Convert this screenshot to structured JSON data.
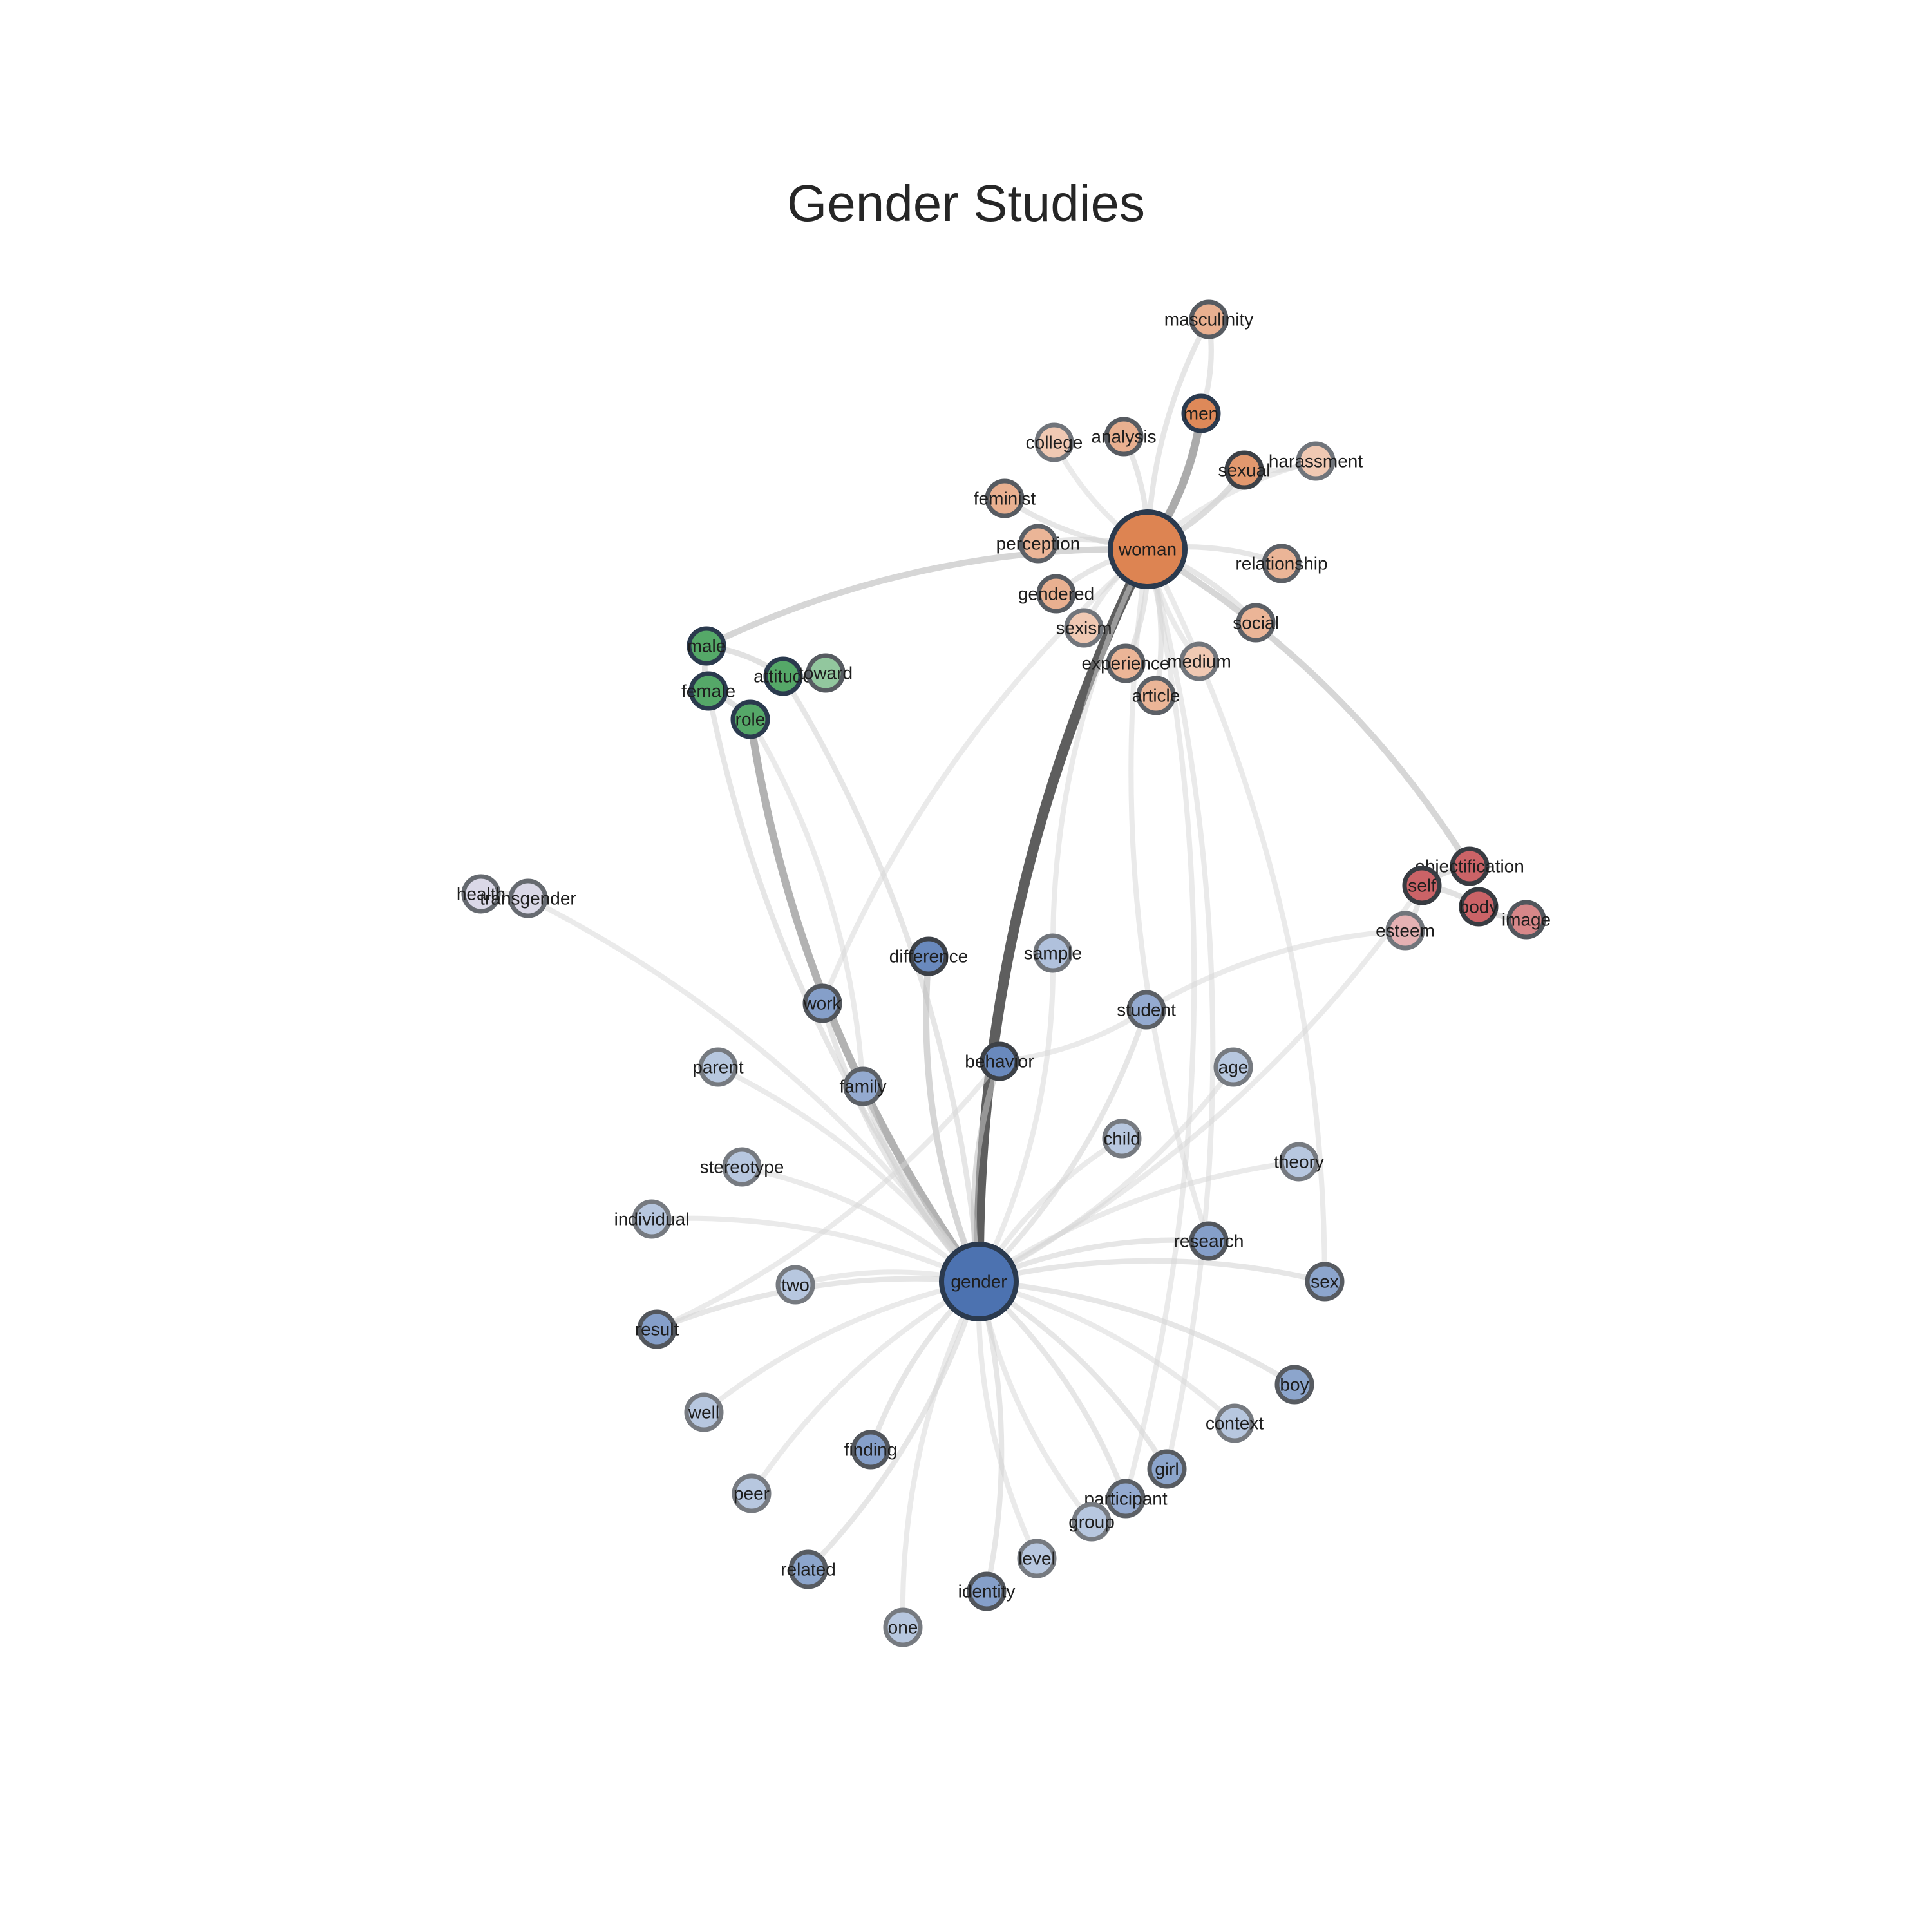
{
  "title": "Gender Studies",
  "colors": {
    "blue_cluster": "#4c72b0",
    "orange_cluster": "#dd8452",
    "green_cluster": "#55a868",
    "red_cluster": "#c44e52",
    "purple_cluster": "#b7b4d0",
    "edge_strong": "#555555",
    "edge_weak": "#dddddd",
    "node_stroke_dark": "#2b3a4e"
  },
  "nodes": [
    {
      "id": "gender",
      "label": "gender",
      "cluster": "blue",
      "weight": 1.0
    },
    {
      "id": "woman",
      "label": "woman",
      "cluster": "orange",
      "weight": 1.0
    },
    {
      "id": "men",
      "label": "men",
      "cluster": "orange",
      "weight": 0.95
    },
    {
      "id": "masculinity",
      "label": "masculinity",
      "cluster": "orange",
      "weight": 0.55
    },
    {
      "id": "college",
      "label": "college",
      "cluster": "orange",
      "weight": 0.3
    },
    {
      "id": "analysis",
      "label": "analysis",
      "cluster": "orange",
      "weight": 0.55
    },
    {
      "id": "sexual",
      "label": "sexual",
      "cluster": "orange",
      "weight": 0.8
    },
    {
      "id": "harassment",
      "label": "harassment",
      "cluster": "orange",
      "weight": 0.3
    },
    {
      "id": "feminist",
      "label": "feminist",
      "cluster": "orange",
      "weight": 0.55
    },
    {
      "id": "perception",
      "label": "perception",
      "cluster": "orange",
      "weight": 0.5
    },
    {
      "id": "relationship",
      "label": "relationship",
      "cluster": "orange",
      "weight": 0.5
    },
    {
      "id": "gendered",
      "label": "gendered",
      "cluster": "orange",
      "weight": 0.55
    },
    {
      "id": "social",
      "label": "social",
      "cluster": "orange",
      "weight": 0.5
    },
    {
      "id": "sexism",
      "label": "sexism",
      "cluster": "orange",
      "weight": 0.3
    },
    {
      "id": "experience",
      "label": "experience",
      "cluster": "orange",
      "weight": 0.5
    },
    {
      "id": "medium",
      "label": "medium",
      "cluster": "orange",
      "weight": 0.3
    },
    {
      "id": "article",
      "label": "article",
      "cluster": "orange",
      "weight": 0.5
    },
    {
      "id": "male",
      "label": "male",
      "cluster": "green",
      "weight": 1.0
    },
    {
      "id": "female",
      "label": "female",
      "cluster": "green",
      "weight": 1.0
    },
    {
      "id": "attitude",
      "label": "attitude",
      "cluster": "green",
      "weight": 1.0
    },
    {
      "id": "toward",
      "label": "toward",
      "cluster": "green",
      "weight": 0.55
    },
    {
      "id": "role",
      "label": "role",
      "cluster": "green",
      "weight": 1.0
    },
    {
      "id": "objectification",
      "label": "objectification",
      "cluster": "red",
      "weight": 0.85
    },
    {
      "id": "self",
      "label": "self",
      "cluster": "red",
      "weight": 0.85
    },
    {
      "id": "body",
      "label": "body",
      "cluster": "red",
      "weight": 0.85
    },
    {
      "id": "image",
      "label": "image",
      "cluster": "red",
      "weight": 0.6
    },
    {
      "id": "esteem",
      "label": "esteem",
      "cluster": "red",
      "weight": 0.3
    },
    {
      "id": "health",
      "label": "health",
      "cluster": "purple",
      "weight": 0.4
    },
    {
      "id": "transgender",
      "label": "transgender",
      "cluster": "purple",
      "weight": 0.4
    },
    {
      "id": "difference",
      "label": "difference",
      "cluster": "blue",
      "weight": 0.8
    },
    {
      "id": "sample",
      "label": "sample",
      "cluster": "blue",
      "weight": 0.3
    },
    {
      "id": "work",
      "label": "work",
      "cluster": "blue",
      "weight": 0.6
    },
    {
      "id": "student",
      "label": "student",
      "cluster": "blue",
      "weight": 0.5
    },
    {
      "id": "behavior",
      "label": "behavior",
      "cluster": "blue",
      "weight": 0.8
    },
    {
      "id": "parent",
      "label": "parent",
      "cluster": "blue",
      "weight": 0.25
    },
    {
      "id": "family",
      "label": "family",
      "cluster": "blue",
      "weight": 0.5
    },
    {
      "id": "age",
      "label": "age",
      "cluster": "blue",
      "weight": 0.25
    },
    {
      "id": "child",
      "label": "child",
      "cluster": "blue",
      "weight": 0.25
    },
    {
      "id": "stereotype",
      "label": "stereotype",
      "cluster": "blue",
      "weight": 0.25
    },
    {
      "id": "theory",
      "label": "theory",
      "cluster": "blue",
      "weight": 0.25
    },
    {
      "id": "individual",
      "label": "individual",
      "cluster": "blue",
      "weight": 0.25
    },
    {
      "id": "research",
      "label": "research",
      "cluster": "blue",
      "weight": 0.6
    },
    {
      "id": "two",
      "label": "two",
      "cluster": "blue",
      "weight": 0.25
    },
    {
      "id": "sex",
      "label": "sex",
      "cluster": "blue",
      "weight": 0.55
    },
    {
      "id": "result",
      "label": "result",
      "cluster": "blue",
      "weight": 0.6
    },
    {
      "id": "boy",
      "label": "boy",
      "cluster": "blue",
      "weight": 0.55
    },
    {
      "id": "well",
      "label": "well",
      "cluster": "blue",
      "weight": 0.25
    },
    {
      "id": "context",
      "label": "context",
      "cluster": "blue",
      "weight": 0.25
    },
    {
      "id": "finding",
      "label": "finding",
      "cluster": "blue",
      "weight": 0.6
    },
    {
      "id": "girl",
      "label": "girl",
      "cluster": "blue",
      "weight": 0.55
    },
    {
      "id": "peer",
      "label": "peer",
      "cluster": "blue",
      "weight": 0.25
    },
    {
      "id": "participant",
      "label": "participant",
      "cluster": "blue",
      "weight": 0.5
    },
    {
      "id": "group",
      "label": "group",
      "cluster": "blue",
      "weight": 0.25
    },
    {
      "id": "related",
      "label": "related",
      "cluster": "blue",
      "weight": 0.55
    },
    {
      "id": "level",
      "label": "level",
      "cluster": "blue",
      "weight": 0.25
    },
    {
      "id": "identity",
      "label": "identity",
      "cluster": "blue",
      "weight": 0.6
    },
    {
      "id": "one",
      "label": "one",
      "cluster": "blue",
      "weight": 0.25
    }
  ],
  "edges": [
    {
      "source": "gender",
      "target": "woman",
      "strength": 1.0
    },
    {
      "source": "woman",
      "target": "men",
      "strength": 0.6
    },
    {
      "source": "gender",
      "target": "role",
      "strength": 0.55
    },
    {
      "source": "woman",
      "target": "male",
      "strength": 0.3
    },
    {
      "source": "woman",
      "target": "objectification",
      "strength": 0.3
    },
    {
      "source": "woman",
      "target": "sexual",
      "strength": 0.25
    },
    {
      "source": "woman",
      "target": "masculinity",
      "strength": 0.15
    },
    {
      "source": "men",
      "target": "masculinity",
      "strength": 0.15
    },
    {
      "source": "woman",
      "target": "college",
      "strength": 0.12
    },
    {
      "source": "woman",
      "target": "analysis",
      "strength": 0.15
    },
    {
      "source": "woman",
      "target": "harassment",
      "strength": 0.12
    },
    {
      "source": "sexual",
      "target": "harassment",
      "strength": 0.12
    },
    {
      "source": "woman",
      "target": "feminist",
      "strength": 0.15
    },
    {
      "source": "woman",
      "target": "perception",
      "strength": 0.15
    },
    {
      "source": "woman",
      "target": "relationship",
      "strength": 0.15
    },
    {
      "source": "woman",
      "target": "gendered",
      "strength": 0.15
    },
    {
      "source": "woman",
      "target": "social",
      "strength": 0.15
    },
    {
      "source": "woman",
      "target": "sexism",
      "strength": 0.12
    },
    {
      "source": "woman",
      "target": "experience",
      "strength": 0.15
    },
    {
      "source": "woman",
      "target": "medium",
      "strength": 0.12
    },
    {
      "source": "woman",
      "target": "article",
      "strength": 0.15
    },
    {
      "source": "male",
      "target": "female",
      "strength": 0.2
    },
    {
      "source": "male",
      "target": "attitude",
      "strength": 0.2
    },
    {
      "source": "attitude",
      "target": "toward",
      "strength": 0.2
    },
    {
      "source": "female",
      "target": "role",
      "strength": 0.2
    },
    {
      "source": "gender",
      "target": "attitude",
      "strength": 0.15
    },
    {
      "source": "gender",
      "target": "female",
      "strength": 0.15
    },
    {
      "source": "objectification",
      "target": "self",
      "strength": 0.2
    },
    {
      "source": "self",
      "target": "body",
      "strength": 0.2
    },
    {
      "source": "body",
      "target": "image",
      "strength": 0.2
    },
    {
      "source": "self",
      "target": "esteem",
      "strength": 0.15
    },
    {
      "source": "gender",
      "target": "self",
      "strength": 0.12
    },
    {
      "source": "health",
      "target": "transgender",
      "strength": 0.12
    },
    {
      "source": "gender",
      "target": "transgender",
      "strength": 0.12
    },
    {
      "source": "gender",
      "target": "difference",
      "strength": 0.3
    },
    {
      "source": "gender",
      "target": "sample",
      "strength": 0.12
    },
    {
      "source": "gender",
      "target": "work",
      "strength": 0.15
    },
    {
      "source": "gender",
      "target": "student",
      "strength": 0.15
    },
    {
      "source": "gender",
      "target": "behavior",
      "strength": 0.25
    },
    {
      "source": "gender",
      "target": "parent",
      "strength": 0.12
    },
    {
      "source": "gender",
      "target": "family",
      "strength": 0.15
    },
    {
      "source": "gender",
      "target": "age",
      "strength": 0.12
    },
    {
      "source": "gender",
      "target": "child",
      "strength": 0.12
    },
    {
      "source": "gender",
      "target": "stereotype",
      "strength": 0.12
    },
    {
      "source": "gender",
      "target": "theory",
      "strength": 0.12
    },
    {
      "source": "gender",
      "target": "individual",
      "strength": 0.12
    },
    {
      "source": "gender",
      "target": "research",
      "strength": 0.15
    },
    {
      "source": "gender",
      "target": "two",
      "strength": 0.12
    },
    {
      "source": "gender",
      "target": "sex",
      "strength": 0.15
    },
    {
      "source": "gender",
      "target": "result",
      "strength": 0.15
    },
    {
      "source": "gender",
      "target": "boy",
      "strength": 0.15
    },
    {
      "source": "gender",
      "target": "well",
      "strength": 0.12
    },
    {
      "source": "gender",
      "target": "context",
      "strength": 0.12
    },
    {
      "source": "gender",
      "target": "finding",
      "strength": 0.15
    },
    {
      "source": "gender",
      "target": "girl",
      "strength": 0.15
    },
    {
      "source": "gender",
      "target": "peer",
      "strength": 0.12
    },
    {
      "source": "gender",
      "target": "participant",
      "strength": 0.15
    },
    {
      "source": "gender",
      "target": "group",
      "strength": 0.12
    },
    {
      "source": "gender",
      "target": "related",
      "strength": 0.15
    },
    {
      "source": "gender",
      "target": "level",
      "strength": 0.12
    },
    {
      "source": "gender",
      "target": "identity",
      "strength": 0.15
    },
    {
      "source": "gender",
      "target": "one",
      "strength": 0.12
    },
    {
      "source": "woman",
      "target": "sex",
      "strength": 0.12
    },
    {
      "source": "woman",
      "target": "research",
      "strength": 0.12
    },
    {
      "source": "woman",
      "target": "girl",
      "strength": 0.12
    },
    {
      "source": "woman",
      "target": "work",
      "strength": 0.12
    },
    {
      "source": "woman",
      "target": "participant",
      "strength": 0.12
    },
    {
      "source": "woman",
      "target": "sample",
      "strength": 0.12
    },
    {
      "source": "role",
      "target": "family",
      "strength": 0.12
    },
    {
      "source": "behavior",
      "target": "student",
      "strength": 0.12
    },
    {
      "source": "student",
      "target": "esteem",
      "strength": 0.12
    },
    {
      "source": "result",
      "target": "behavior",
      "strength": 0.12
    }
  ]
}
